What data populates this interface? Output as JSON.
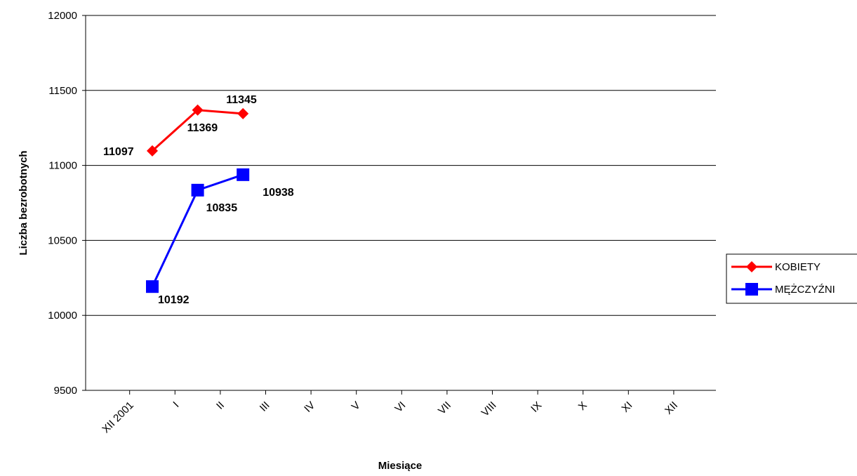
{
  "chart_data": {
    "type": "line",
    "x_label": "Miesiące",
    "y_label": "Liczba bezrobotnych",
    "categories": [
      "XII 2001",
      "I",
      "II",
      "III",
      "IV",
      "V",
      "VI",
      "VII",
      "VIII",
      "IX",
      "X",
      "XI",
      "XII"
    ],
    "series": [
      {
        "name": "KOBIETY",
        "color": "#ff0000",
        "marker": "diamond",
        "values": [
          11097,
          11369,
          11345,
          null,
          null,
          null,
          null,
          null,
          null,
          null,
          null,
          null,
          null
        ]
      },
      {
        "name": "MĘŻCZYŹNI",
        "color": "#0000ff",
        "marker": "square",
        "values": [
          10192,
          10835,
          10938,
          null,
          null,
          null,
          null,
          null,
          null,
          null,
          null,
          null,
          null
        ]
      }
    ],
    "ylim": [
      9500,
      12000
    ],
    "yticks": [
      9500,
      10000,
      10500,
      11000,
      11500,
      12000
    ],
    "grid": true,
    "legend": "right"
  }
}
